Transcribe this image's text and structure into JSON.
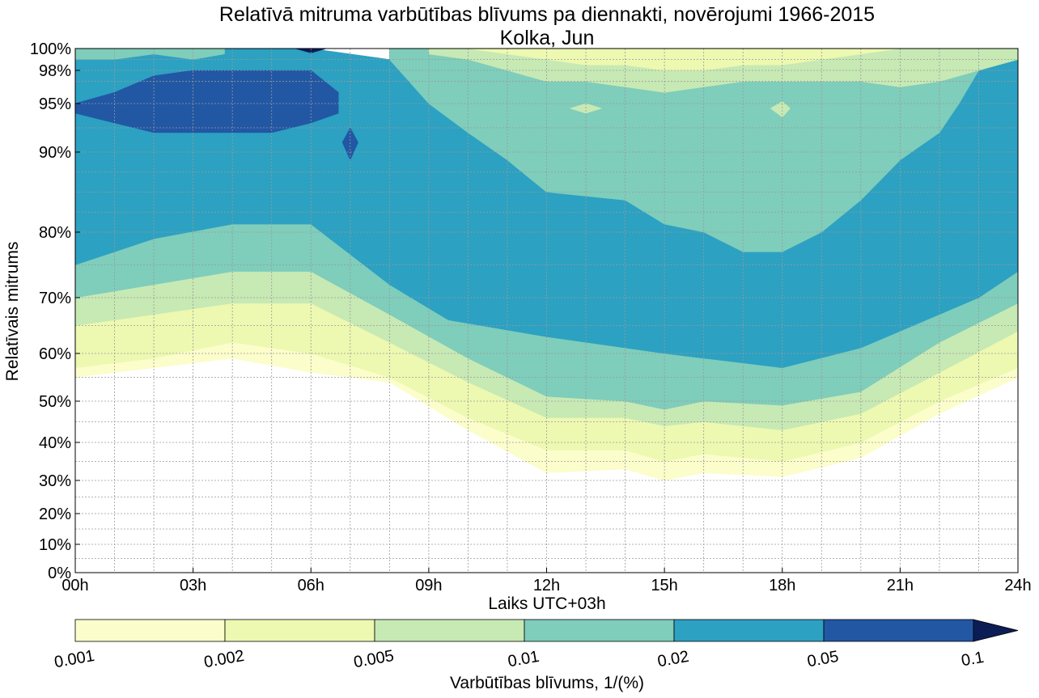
{
  "chart_data": {
    "type": "contour",
    "title": "Relatīvā mitruma varbūtības blīvums pa diennakti, novērojumi 1966-2015",
    "subtitle": "Kolka, Jun",
    "xlabel": "Laiks UTC+03h",
    "ylabel": "Relatīvais mitrums",
    "x_range": [
      0,
      24
    ],
    "y_range": [
      0,
      100
    ],
    "x_ticks": [
      {
        "value": 0,
        "label": "00h"
      },
      {
        "value": 3,
        "label": "03h"
      },
      {
        "value": 6,
        "label": "06h"
      },
      {
        "value": 9,
        "label": "09h"
      },
      {
        "value": 12,
        "label": "12h"
      },
      {
        "value": 15,
        "label": "15h"
      },
      {
        "value": 18,
        "label": "18h"
      },
      {
        "value": 21,
        "label": "21h"
      },
      {
        "value": 24,
        "label": "24h"
      }
    ],
    "y_ticks": [
      {
        "value": 0,
        "label": "0%"
      },
      {
        "value": 10,
        "label": "10%"
      },
      {
        "value": 20,
        "label": "20%"
      },
      {
        "value": 30,
        "label": "30%"
      },
      {
        "value": 40,
        "label": "40%"
      },
      {
        "value": 50,
        "label": "50%"
      },
      {
        "value": 60,
        "label": "60%"
      },
      {
        "value": 70,
        "label": "70%"
      },
      {
        "value": 80,
        "label": "80%"
      },
      {
        "value": 90,
        "label": "90%"
      },
      {
        "value": 95,
        "label": "95%"
      },
      {
        "value": 98,
        "label": "98%"
      },
      {
        "value": 100,
        "label": "100%"
      }
    ],
    "x_minor_step_hours": 1,
    "y_minor_gridlines": [
      5,
      15,
      25,
      35,
      45,
      55,
      65,
      75,
      82.5,
      85,
      87.5,
      92.5,
      97,
      99
    ],
    "grid": true,
    "colorbar": {
      "label": "Varbūtības blīvums, 1/(%)",
      "orientation": "horizontal",
      "extend": "max",
      "levels": [
        {
          "label": "0.001",
          "color": "#fbfdcb"
        },
        {
          "label": "0.002",
          "color": "#edf8b1"
        },
        {
          "label": "0.005",
          "color": "#c7e9b4"
        },
        {
          "label": "0.01",
          "color": "#7fcdbb"
        },
        {
          "label": "0.02",
          "color": "#2ca1c2"
        },
        {
          "label": "0.05",
          "color": "#2257a4"
        },
        {
          "label": "0.1",
          "color": "#0c1d56"
        }
      ]
    },
    "bands": [
      {
        "level": "0.001",
        "color": "#fbfdcb",
        "x": [
          0,
          2,
          4,
          6,
          8,
          10,
          12,
          14,
          15,
          16,
          18,
          20,
          22,
          24
        ],
        "lower": [
          55,
          57,
          59,
          56,
          54,
          43,
          32,
          33,
          30,
          32,
          31,
          36,
          47,
          55
        ],
        "upper": [
          57,
          59,
          62,
          60,
          55,
          46,
          38,
          38,
          35,
          37,
          35,
          40,
          50,
          57
        ]
      },
      {
        "level": "0.002",
        "color": "#edf8b1",
        "x": [
          0,
          2,
          4,
          6,
          8,
          10,
          12,
          14,
          15,
          16,
          18,
          20,
          22,
          24
        ],
        "lower": [
          57,
          59,
          62,
          60,
          55,
          46,
          38,
          38,
          35,
          37,
          35,
          40,
          50,
          57
        ],
        "upper": [
          65,
          67,
          69,
          69,
          62,
          54,
          46,
          46,
          44,
          45,
          43,
          47,
          56,
          64
        ]
      },
      {
        "level": "0.005",
        "color": "#c7e9b4",
        "x": [
          0,
          2,
          4,
          6,
          8,
          10,
          12,
          14,
          15,
          16,
          18,
          20,
          22,
          24
        ],
        "lower": [
          65,
          67,
          69,
          69,
          62,
          54,
          46,
          46,
          44,
          45,
          43,
          47,
          56,
          64
        ],
        "upper": [
          70,
          72,
          74,
          74,
          67,
          59,
          51,
          50,
          48,
          50,
          49,
          52,
          62,
          69
        ]
      },
      {
        "level": "0.01",
        "color": "#7fcdbb",
        "x": [
          0,
          2,
          4,
          6,
          8,
          10,
          12,
          14,
          15,
          16,
          18,
          20,
          22,
          24
        ],
        "lower": [
          70,
          72,
          74,
          74,
          67,
          59,
          51,
          50,
          48,
          50,
          49,
          52,
          62,
          69
        ],
        "upper": [
          75,
          79,
          81,
          81,
          72,
          66,
          63,
          61,
          60,
          59,
          57,
          61,
          67,
          74
        ]
      },
      {
        "level": "0.02",
        "color": "#2ca1c2",
        "x": [
          0,
          2,
          4,
          6,
          8,
          9.5,
          12,
          14,
          15,
          16,
          18,
          20,
          22,
          23,
          24
        ],
        "lower": [
          75,
          79,
          81,
          81,
          72,
          66,
          63,
          61,
          60,
          59,
          57,
          61,
          67,
          70,
          74
        ],
        "upper": [
          100,
          100,
          100,
          100,
          99,
          98,
          99,
          99,
          99,
          99,
          99,
          99,
          100,
          100,
          100
        ]
      },
      {
        "level": "0.01",
        "color": "#7fcdbb",
        "x": [
          8,
          9,
          10,
          11,
          12,
          14,
          15,
          16,
          17,
          18,
          19,
          20,
          21,
          22,
          22.5,
          23,
          24
        ],
        "lower": [
          99,
          95,
          92,
          89,
          85,
          84,
          81,
          80,
          77,
          77,
          80,
          84,
          89,
          92,
          95,
          98,
          99
        ],
        "upper": [
          100,
          100,
          100,
          100,
          100,
          100,
          100,
          100,
          100,
          100,
          100,
          100,
          100,
          100,
          100,
          100,
          100
        ]
      },
      {
        "level": "0.005",
        "color": "#c7e9b4",
        "x": [
          9,
          10,
          11,
          12,
          13,
          14,
          15,
          16,
          17,
          18,
          19,
          20,
          21,
          22,
          23,
          24
        ],
        "lower": [
          99.5,
          99,
          98,
          97,
          97,
          96.5,
          96,
          96.5,
          97,
          97,
          97,
          97,
          96.5,
          97,
          98,
          99
        ],
        "upper": [
          100,
          100,
          100,
          100,
          100,
          100,
          100,
          100,
          100,
          100,
          100,
          100,
          100,
          100,
          100,
          100
        ]
      },
      {
        "level": "0.002",
        "color": "#edf8b1",
        "x": [
          10,
          11,
          12,
          13,
          14,
          15,
          16,
          17,
          18,
          19,
          20,
          21
        ],
        "lower": [
          100,
          99.5,
          99,
          98.5,
          98.5,
          98,
          98,
          98.5,
          98.5,
          99,
          99.5,
          100
        ],
        "upper": [
          100,
          100,
          100,
          100,
          100,
          100,
          100,
          100,
          100,
          100,
          100,
          100
        ]
      },
      {
        "level": "0.01",
        "color": "#7fcdbb",
        "x": [
          0,
          1,
          2,
          3,
          3.8
        ],
        "lower": [
          99,
          99,
          99.5,
          99,
          99.5
        ],
        "upper": [
          100,
          100,
          100,
          100,
          100
        ]
      },
      {
        "level": "0.05",
        "color": "#2257a4",
        "x": [
          0,
          1,
          2,
          3,
          4,
          5,
          6,
          6.7
        ],
        "lower": [
          94,
          93,
          92,
          92,
          92,
          92,
          93,
          94
        ],
        "upper": [
          95,
          96,
          97.5,
          98,
          98,
          98,
          98,
          96
        ]
      }
    ],
    "islands": [
      {
        "level": "0.05",
        "color": "#2257a4",
        "points": [
          [
            6.8,
            91
          ],
          [
            7,
            92.5
          ],
          [
            7.2,
            91
          ],
          [
            7,
            89
          ]
        ]
      },
      {
        "level": "0.005",
        "color": "#c7e9b4",
        "points": [
          [
            12.6,
            94.5
          ],
          [
            13,
            95
          ],
          [
            13.4,
            94.5
          ],
          [
            13,
            94
          ]
        ]
      },
      {
        "level": "0.005",
        "color": "#c7e9b4",
        "points": [
          [
            17.7,
            94.5
          ],
          [
            18,
            95.2
          ],
          [
            18.2,
            94.5
          ],
          [
            18,
            93.6
          ]
        ]
      },
      {
        "level": "0.1",
        "color": "#0c1d56",
        "points": [
          [
            5.6,
            100
          ],
          [
            6,
            99.6
          ],
          [
            6.4,
            100
          ]
        ]
      }
    ]
  }
}
